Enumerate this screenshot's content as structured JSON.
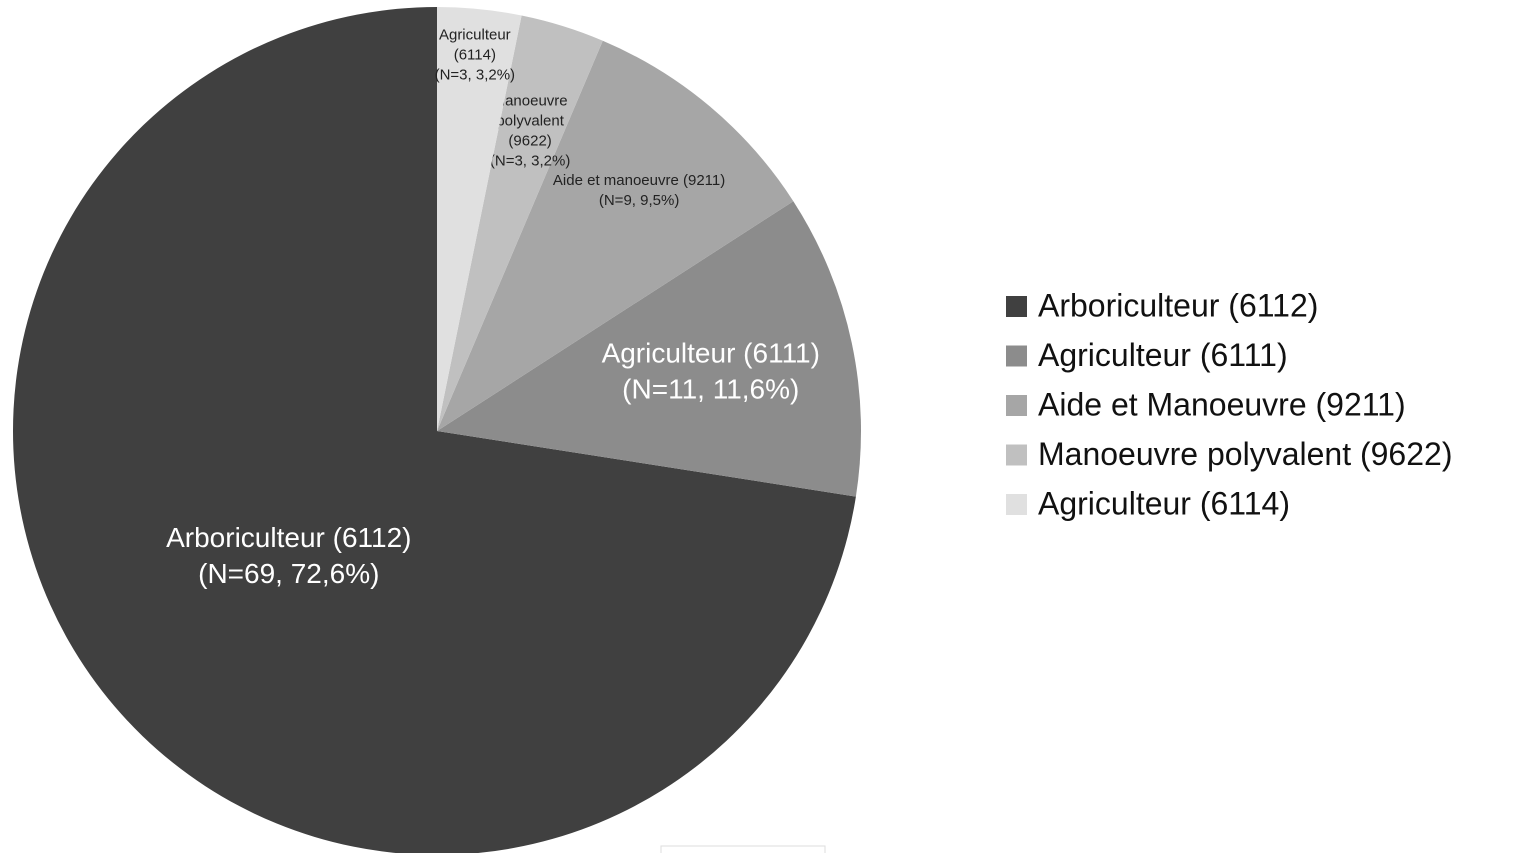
{
  "chart_data": {
    "type": "pie",
    "categories": [
      "Arboriculteur (6112)",
      "Agriculteur (6111)",
      "Aide et Manoeuvre (9211)",
      "Manoeuvre polyvalent (9622)",
      "Agriculteur (6114)"
    ],
    "values": [
      72.6,
      11.6,
      9.5,
      3.2,
      3.2
    ],
    "value_labels": [
      [
        "Arboriculteur (6112)",
        "(N=69, 72,6%)"
      ],
      [
        "Agriculteur (6111)",
        "(N=11, 11,6%)"
      ],
      [
        "Aide et manoeuvre (9211)",
        "(N=9, 9,5%)"
      ],
      [
        "Manoeuvre",
        "polyvalent",
        "(9622)",
        "(N=3, 3,2%)"
      ],
      [
        "Agriculteur",
        "(6114)",
        "(N=3, 3,2%)"
      ]
    ],
    "colors": [
      "#404040",
      "#8c8c8c",
      "#a6a6a6",
      "#c0c0c0",
      "#e0e0e0"
    ],
    "startangle": 90,
    "counterclock": true,
    "legend": "right"
  }
}
